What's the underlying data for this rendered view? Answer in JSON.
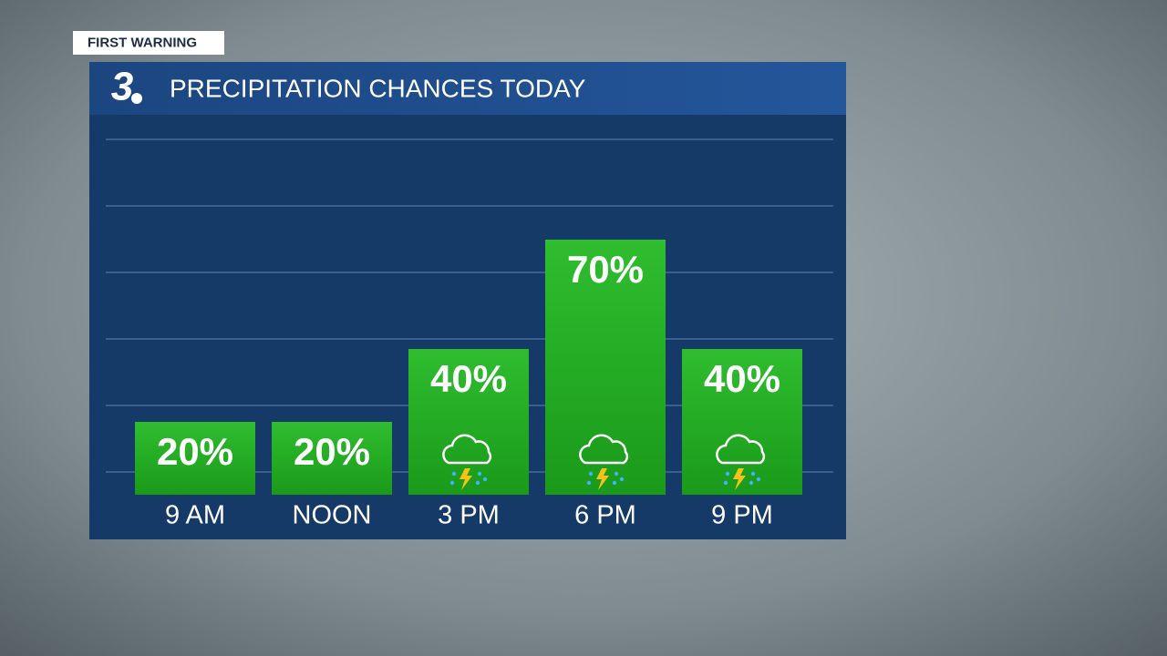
{
  "chart_data": {
    "type": "bar",
    "badge": "FIRST WARNING",
    "logo": "3",
    "title": "PRECIPITATION CHANCES TODAY",
    "categories": [
      "9 AM",
      "NOON",
      "3 PM",
      "6 PM",
      "9 PM"
    ],
    "values": [
      20,
      20,
      40,
      70,
      40
    ],
    "value_labels": [
      "20%",
      "20%",
      "40%",
      "70%",
      "40%"
    ],
    "color": "#22a822",
    "ylim": [
      0,
      100
    ]
  }
}
